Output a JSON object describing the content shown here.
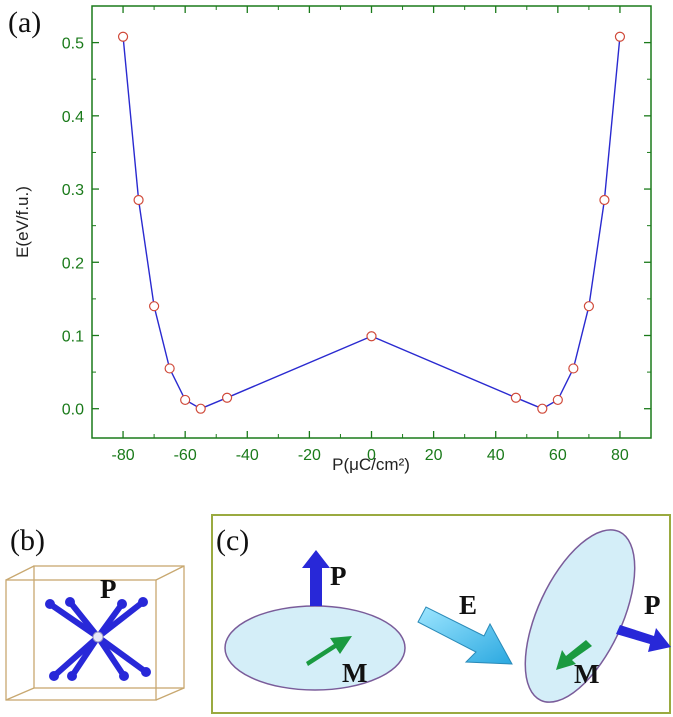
{
  "panels": {
    "a": "(a)",
    "b": "(b)",
    "c": "(c)"
  },
  "chart_data": {
    "type": "line",
    "xlabel": "P(μC/cm²)",
    "ylabel": "E(eV/f.u.)",
    "xlim": [
      -90,
      90
    ],
    "ylim": [
      -0.04,
      0.55
    ],
    "xticks": [
      -80,
      -60,
      -40,
      -20,
      0,
      20,
      40,
      60,
      80
    ],
    "yticks": [
      0.0,
      0.1,
      0.2,
      0.3,
      0.4,
      0.5
    ],
    "ytick_labels": [
      "0.0",
      "0.1",
      "0.2",
      "0.3",
      "0.4",
      "0.5"
    ],
    "grid": false,
    "series": [
      {
        "color": "#2a2ad0",
        "marker_color": "#d04a3a",
        "x": [
          -80,
          -75,
          -70,
          -65,
          -60,
          -55,
          -46.5,
          0,
          46.5,
          55,
          60,
          65,
          70,
          75,
          80
        ],
        "y": [
          0.508,
          0.285,
          0.14,
          0.055,
          0.012,
          0.0,
          0.015,
          0.099,
          0.015,
          0.0,
          0.012,
          0.055,
          0.14,
          0.285,
          0.508
        ]
      }
    ]
  },
  "schematic": {
    "b_label": "P",
    "c_labels": {
      "p_left": "P",
      "m_left": "M",
      "e_field": "E",
      "m_right": "M",
      "p_right": "P"
    },
    "colors": {
      "polarization_arrow": "#2828d8",
      "magnetization_arrow": "#1a9a40",
      "field_arrow": "#5ac8ee",
      "ellipse_fill": "#d4eef8",
      "ellipse_stroke": "#7a5c9a",
      "frame_c": "#9aaa40",
      "frame_b": "#c8a870",
      "axis_frame": "#1a7a1a"
    }
  }
}
